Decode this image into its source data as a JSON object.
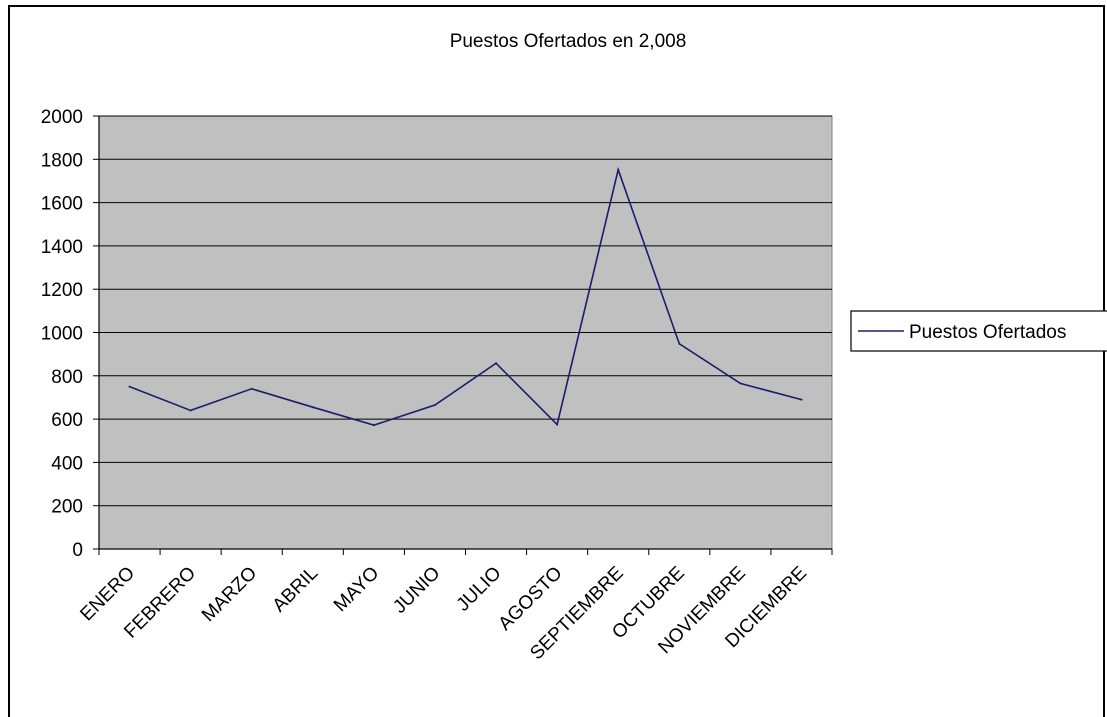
{
  "chart_data": {
    "type": "line",
    "title": "Puestos Ofertados en 2,008",
    "xlabel": "",
    "ylabel": "",
    "categories": [
      "ENERO",
      "FEBRERO",
      "MARZO",
      "ABRIL",
      "MAYO",
      "JUNIO",
      "JULIO",
      "AGOSTO",
      "SEPTIEMBRE",
      "OCTUBRE",
      "NOVIEMBRE",
      "DICIEMBRE"
    ],
    "series": [
      {
        "name": "Puestos Ofertados",
        "values": [
          750,
          640,
          740,
          655,
          572,
          665,
          858,
          575,
          1752,
          948,
          765,
          690
        ],
        "color": "#1f1a6b"
      }
    ],
    "ylim": [
      0,
      2000
    ],
    "yticks": [
      0,
      200,
      400,
      600,
      800,
      1000,
      1200,
      1400,
      1600,
      1800,
      2000
    ],
    "grid": true,
    "plot_background": "#c0c0c0",
    "legend_position": "right"
  }
}
